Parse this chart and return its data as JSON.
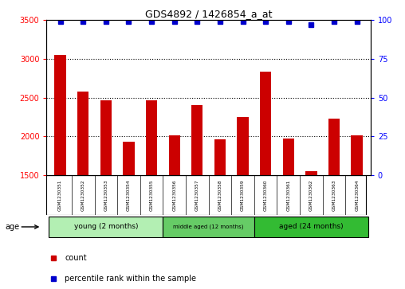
{
  "title": "GDS4892 / 1426854_a_at",
  "samples": [
    "GSM1230351",
    "GSM1230352",
    "GSM1230353",
    "GSM1230354",
    "GSM1230355",
    "GSM1230356",
    "GSM1230357",
    "GSM1230358",
    "GSM1230359",
    "GSM1230360",
    "GSM1230361",
    "GSM1230362",
    "GSM1230363",
    "GSM1230364"
  ],
  "counts": [
    3050,
    2580,
    2460,
    1930,
    2460,
    2010,
    2400,
    1960,
    2250,
    2830,
    1970,
    1550,
    2230,
    2010
  ],
  "percentile_ranks": [
    99,
    99,
    99,
    99,
    99,
    99,
    99,
    99,
    99,
    99,
    99,
    97,
    99,
    99
  ],
  "ylim_left": [
    1500,
    3500
  ],
  "ylim_right": [
    0,
    100
  ],
  "yticks_left": [
    1500,
    2000,
    2500,
    3000,
    3500
  ],
  "yticks_right": [
    0,
    25,
    50,
    75,
    100
  ],
  "bar_color": "#cc0000",
  "dot_color": "#0000cc",
  "groups": [
    {
      "label": "young (2 months)",
      "start": 0,
      "end": 5
    },
    {
      "label": "middle aged (12 months)",
      "start": 5,
      "end": 9
    },
    {
      "label": "aged (24 months)",
      "start": 9,
      "end": 14
    }
  ],
  "group_colors": [
    "#b3efb3",
    "#66cc66",
    "#33bb33"
  ],
  "chart_bg": "#ffffff",
  "sample_name_bg": "#cccccc",
  "legend_count_color": "#cc0000",
  "legend_dot_color": "#0000cc",
  "age_label": "age",
  "grid_lines": [
    2000,
    2500,
    3000
  ],
  "bar_width": 0.5,
  "dot_size": 4
}
